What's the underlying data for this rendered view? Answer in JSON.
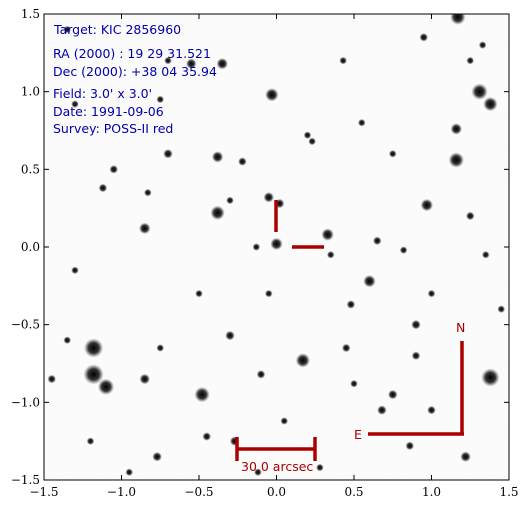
{
  "info": {
    "target": "Target: KIC 2856960",
    "ra": "RA (2000) : 19 29 31.521",
    "dec": "Dec (2000): +38 04 35.94",
    "field": "Field: 3.0' x 3.0'",
    "date": "Date: 1991-09-06",
    "survey": "Survey: POSS-II red"
  },
  "overlay": {
    "north_label": "N",
    "east_label": "E",
    "scale_label": "30.0 arcsec",
    "color": "#aa0000"
  },
  "colors": {
    "info_text": "#0000aa",
    "marker": "#aa0000"
  },
  "chart_data": {
    "type": "image",
    "xlim": [
      -1.5,
      1.5
    ],
    "ylim": [
      -1.5,
      1.5
    ],
    "x_ticks": [
      "−1.5",
      "−1.0",
      "−0.5",
      "0.0",
      "0.5",
      "1.0",
      "1.5"
    ],
    "y_ticks": [
      "1.5",
      "1.0",
      "0.5",
      "0.0",
      "−0.5",
      "−1.0",
      "−1.5"
    ],
    "x_tick_values": [
      -1.5,
      -1.0,
      -0.5,
      0.0,
      0.5,
      1.0,
      1.5
    ],
    "y_tick_values": [
      1.5,
      1.0,
      0.5,
      0.0,
      -0.5,
      -1.0,
      -1.5
    ],
    "stars": [
      [
        1.17,
        1.48,
        3.2
      ],
      [
        0.02,
        0.28,
        2.0
      ],
      [
        0.0,
        0.02,
        2.6
      ],
      [
        0.33,
        0.08,
        2.6
      ],
      [
        -0.38,
        0.22,
        3.0
      ],
      [
        -0.35,
        1.18,
        2.4
      ],
      [
        -0.03,
        0.98,
        2.8
      ],
      [
        1.31,
        1.0,
        3.4
      ],
      [
        1.38,
        0.92,
        3.0
      ],
      [
        1.16,
        0.56,
        3.2
      ],
      [
        1.16,
        0.76,
        2.4
      ],
      [
        0.97,
        0.27,
        2.6
      ],
      [
        -1.18,
        -0.65,
        4.0
      ],
      [
        -1.18,
        -0.82,
        4.2
      ],
      [
        -1.1,
        -0.9,
        3.4
      ],
      [
        -0.48,
        -0.95,
        3.2
      ],
      [
        0.17,
        -0.73,
        3.0
      ],
      [
        1.38,
        -0.84,
        3.8
      ],
      [
        0.6,
        -0.22,
        2.6
      ],
      [
        -0.85,
        0.12,
        2.4
      ],
      [
        -0.55,
        1.18,
        2.2
      ],
      [
        -0.38,
        0.58,
        2.4
      ],
      [
        -0.05,
        0.32,
        2.2
      ],
      [
        -0.85,
        -0.85,
        2.2
      ],
      [
        -0.3,
        -0.57,
        2.0
      ],
      [
        -0.22,
        0.55,
        1.8
      ],
      [
        -0.7,
        0.6,
        2.0
      ],
      [
        -1.05,
        0.5,
        1.8
      ],
      [
        -1.12,
        0.38,
        1.8
      ],
      [
        0.65,
        0.04,
        1.8
      ],
      [
        0.9,
        -0.5,
        2.0
      ],
      [
        0.48,
        -0.37,
        1.8
      ],
      [
        0.9,
        -0.7,
        1.8
      ],
      [
        0.75,
        -0.95,
        2.0
      ],
      [
        0.68,
        -1.05,
        2.0
      ],
      [
        0.86,
        -1.28,
        1.8
      ],
      [
        1.22,
        -1.35,
        2.2
      ],
      [
        -0.77,
        -1.35,
        2.0
      ],
      [
        -0.45,
        -1.22,
        1.8
      ],
      [
        -0.27,
        -1.25,
        2.0
      ],
      [
        -0.1,
        -0.82,
        1.8
      ],
      [
        0.45,
        -0.65,
        1.8
      ],
      [
        0.05,
        -1.12,
        1.6
      ],
      [
        1.0,
        -1.05,
        1.8
      ],
      [
        -0.5,
        -0.3,
        1.6
      ],
      [
        -0.13,
        0.0,
        1.6
      ],
      [
        -1.3,
        0.92,
        1.6
      ],
      [
        -0.75,
        0.95,
        1.6
      ],
      [
        -0.7,
        1.2,
        1.6
      ],
      [
        0.43,
        1.2,
        1.6
      ],
      [
        0.95,
        1.35,
        1.8
      ],
      [
        1.33,
        1.3,
        1.6
      ],
      [
        1.25,
        0.2,
        1.8
      ],
      [
        1.35,
        -0.05,
        1.6
      ],
      [
        1.0,
        -0.3,
        1.6
      ],
      [
        1.45,
        -0.4,
        1.6
      ],
      [
        0.28,
        -1.42,
        1.6
      ],
      [
        -0.12,
        -1.45,
        1.6
      ],
      [
        -1.35,
        -0.6,
        1.6
      ],
      [
        -1.45,
        -0.85,
        1.8
      ],
      [
        -1.2,
        -1.25,
        1.6
      ],
      [
        -0.95,
        -1.45,
        1.6
      ],
      [
        0.75,
        0.6,
        1.6
      ],
      [
        0.55,
        0.8,
        1.6
      ],
      [
        0.2,
        0.72,
        1.6
      ],
      [
        -0.3,
        0.3,
        1.6
      ],
      [
        0.35,
        -0.05,
        1.6
      ],
      [
        0.82,
        -0.02,
        1.6
      ],
      [
        -0.05,
        -0.3,
        1.6
      ],
      [
        0.5,
        -0.88,
        1.6
      ],
      [
        -0.75,
        -0.65,
        1.6
      ],
      [
        -0.83,
        0.35,
        1.6
      ],
      [
        -1.3,
        -0.15,
        1.6
      ],
      [
        -1.35,
        1.4,
        1.6
      ],
      [
        1.25,
        1.2,
        1.6
      ],
      [
        0.23,
        0.68,
        1.6
      ]
    ]
  }
}
